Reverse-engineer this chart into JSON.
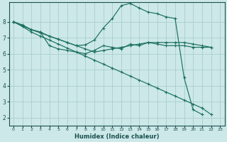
{
  "xlabel": "Humidex (Indice chaleur)",
  "bg_color": "#cde8e8",
  "grid_color": "#aacece",
  "line_color": "#1a7060",
  "xlim": [
    -0.5,
    23.5
  ],
  "ylim": [
    1.5,
    9.2
  ],
  "yticks": [
    2,
    3,
    4,
    5,
    6,
    7,
    8
  ],
  "xticks": [
    0,
    1,
    2,
    3,
    4,
    5,
    6,
    7,
    8,
    9,
    10,
    11,
    12,
    13,
    14,
    15,
    16,
    17,
    18,
    19,
    20,
    21,
    22,
    23
  ],
  "lines": [
    {
      "x": [
        0,
        1,
        2,
        3,
        4,
        5,
        6,
        7,
        8,
        9,
        10,
        11,
        12,
        13,
        14,
        15,
        16,
        17,
        18,
        19,
        20,
        21,
        22
      ],
      "y": [
        8.0,
        7.7,
        7.35,
        7.1,
        6.85,
        6.6,
        6.35,
        6.1,
        5.85,
        5.6,
        5.35,
        5.1,
        4.85,
        4.6,
        4.35,
        4.1,
        3.85,
        3.6,
        3.35,
        3.1,
        2.85,
        2.6,
        2.2
      ]
    },
    {
      "x": [
        0,
        1,
        2,
        3,
        4,
        5,
        6,
        7,
        8,
        9,
        10,
        11,
        12,
        13,
        14,
        15,
        16,
        17,
        18,
        19,
        20,
        21
      ],
      "y": [
        8.0,
        7.75,
        7.5,
        7.35,
        7.1,
        6.9,
        6.7,
        6.5,
        6.55,
        6.85,
        7.6,
        8.2,
        9.0,
        9.15,
        8.85,
        8.6,
        8.5,
        8.3,
        8.2,
        4.5,
        2.5,
        2.2
      ]
    },
    {
      "x": [
        0,
        1,
        2,
        3,
        4,
        5,
        6,
        7,
        8,
        9,
        10,
        11,
        12,
        13,
        14,
        15,
        16,
        17,
        18,
        19,
        20,
        21,
        22
      ],
      "y": [
        8.0,
        7.75,
        7.5,
        7.35,
        6.5,
        6.3,
        6.2,
        6.1,
        6.0,
        6.2,
        6.5,
        6.4,
        6.3,
        6.6,
        6.5,
        6.7,
        6.6,
        6.5,
        6.5,
        6.5,
        6.4,
        6.4,
        6.4
      ]
    },
    {
      "x": [
        0,
        1,
        2,
        3,
        4,
        5,
        6,
        7,
        8,
        9,
        10,
        11,
        12,
        13,
        14,
        15,
        16,
        17,
        18,
        19,
        20,
        21,
        22
      ],
      "y": [
        8.0,
        7.8,
        7.5,
        7.3,
        7.1,
        6.9,
        6.7,
        6.5,
        6.3,
        6.1,
        6.2,
        6.3,
        6.4,
        6.5,
        6.6,
        6.7,
        6.7,
        6.7,
        6.7,
        6.7,
        6.6,
        6.5,
        6.4
      ]
    }
  ]
}
